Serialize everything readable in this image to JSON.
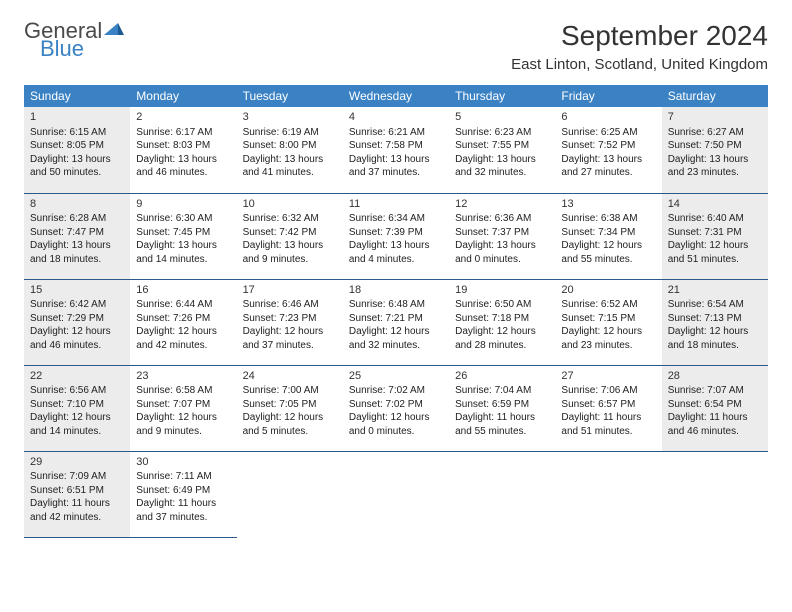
{
  "logo": {
    "general": "General",
    "blue": "Blue"
  },
  "title": "September 2024",
  "location": "East Linton, Scotland, United Kingdom",
  "colors": {
    "header_bg": "#3a82c4",
    "header_text": "#ffffff",
    "shaded_bg": "#ececec",
    "border": "#2a5a8a",
    "logo_gray": "#4a4a4a",
    "logo_blue": "#3a82c4"
  },
  "dayNames": [
    "Sunday",
    "Monday",
    "Tuesday",
    "Wednesday",
    "Thursday",
    "Friday",
    "Saturday"
  ],
  "weeks": [
    [
      {
        "n": "1",
        "shaded": true,
        "sr": "Sunrise: 6:15 AM",
        "ss": "Sunset: 8:05 PM",
        "d1": "Daylight: 13 hours",
        "d2": "and 50 minutes."
      },
      {
        "n": "2",
        "shaded": false,
        "sr": "Sunrise: 6:17 AM",
        "ss": "Sunset: 8:03 PM",
        "d1": "Daylight: 13 hours",
        "d2": "and 46 minutes."
      },
      {
        "n": "3",
        "shaded": false,
        "sr": "Sunrise: 6:19 AM",
        "ss": "Sunset: 8:00 PM",
        "d1": "Daylight: 13 hours",
        "d2": "and 41 minutes."
      },
      {
        "n": "4",
        "shaded": false,
        "sr": "Sunrise: 6:21 AM",
        "ss": "Sunset: 7:58 PM",
        "d1": "Daylight: 13 hours",
        "d2": "and 37 minutes."
      },
      {
        "n": "5",
        "shaded": false,
        "sr": "Sunrise: 6:23 AM",
        "ss": "Sunset: 7:55 PM",
        "d1": "Daylight: 13 hours",
        "d2": "and 32 minutes."
      },
      {
        "n": "6",
        "shaded": false,
        "sr": "Sunrise: 6:25 AM",
        "ss": "Sunset: 7:52 PM",
        "d1": "Daylight: 13 hours",
        "d2": "and 27 minutes."
      },
      {
        "n": "7",
        "shaded": true,
        "sr": "Sunrise: 6:27 AM",
        "ss": "Sunset: 7:50 PM",
        "d1": "Daylight: 13 hours",
        "d2": "and 23 minutes."
      }
    ],
    [
      {
        "n": "8",
        "shaded": true,
        "sr": "Sunrise: 6:28 AM",
        "ss": "Sunset: 7:47 PM",
        "d1": "Daylight: 13 hours",
        "d2": "and 18 minutes."
      },
      {
        "n": "9",
        "shaded": false,
        "sr": "Sunrise: 6:30 AM",
        "ss": "Sunset: 7:45 PM",
        "d1": "Daylight: 13 hours",
        "d2": "and 14 minutes."
      },
      {
        "n": "10",
        "shaded": false,
        "sr": "Sunrise: 6:32 AM",
        "ss": "Sunset: 7:42 PM",
        "d1": "Daylight: 13 hours",
        "d2": "and 9 minutes."
      },
      {
        "n": "11",
        "shaded": false,
        "sr": "Sunrise: 6:34 AM",
        "ss": "Sunset: 7:39 PM",
        "d1": "Daylight: 13 hours",
        "d2": "and 4 minutes."
      },
      {
        "n": "12",
        "shaded": false,
        "sr": "Sunrise: 6:36 AM",
        "ss": "Sunset: 7:37 PM",
        "d1": "Daylight: 13 hours",
        "d2": "and 0 minutes."
      },
      {
        "n": "13",
        "shaded": false,
        "sr": "Sunrise: 6:38 AM",
        "ss": "Sunset: 7:34 PM",
        "d1": "Daylight: 12 hours",
        "d2": "and 55 minutes."
      },
      {
        "n": "14",
        "shaded": true,
        "sr": "Sunrise: 6:40 AM",
        "ss": "Sunset: 7:31 PM",
        "d1": "Daylight: 12 hours",
        "d2": "and 51 minutes."
      }
    ],
    [
      {
        "n": "15",
        "shaded": true,
        "sr": "Sunrise: 6:42 AM",
        "ss": "Sunset: 7:29 PM",
        "d1": "Daylight: 12 hours",
        "d2": "and 46 minutes."
      },
      {
        "n": "16",
        "shaded": false,
        "sr": "Sunrise: 6:44 AM",
        "ss": "Sunset: 7:26 PM",
        "d1": "Daylight: 12 hours",
        "d2": "and 42 minutes."
      },
      {
        "n": "17",
        "shaded": false,
        "sr": "Sunrise: 6:46 AM",
        "ss": "Sunset: 7:23 PM",
        "d1": "Daylight: 12 hours",
        "d2": "and 37 minutes."
      },
      {
        "n": "18",
        "shaded": false,
        "sr": "Sunrise: 6:48 AM",
        "ss": "Sunset: 7:21 PM",
        "d1": "Daylight: 12 hours",
        "d2": "and 32 minutes."
      },
      {
        "n": "19",
        "shaded": false,
        "sr": "Sunrise: 6:50 AM",
        "ss": "Sunset: 7:18 PM",
        "d1": "Daylight: 12 hours",
        "d2": "and 28 minutes."
      },
      {
        "n": "20",
        "shaded": false,
        "sr": "Sunrise: 6:52 AM",
        "ss": "Sunset: 7:15 PM",
        "d1": "Daylight: 12 hours",
        "d2": "and 23 minutes."
      },
      {
        "n": "21",
        "shaded": true,
        "sr": "Sunrise: 6:54 AM",
        "ss": "Sunset: 7:13 PM",
        "d1": "Daylight: 12 hours",
        "d2": "and 18 minutes."
      }
    ],
    [
      {
        "n": "22",
        "shaded": true,
        "sr": "Sunrise: 6:56 AM",
        "ss": "Sunset: 7:10 PM",
        "d1": "Daylight: 12 hours",
        "d2": "and 14 minutes."
      },
      {
        "n": "23",
        "shaded": false,
        "sr": "Sunrise: 6:58 AM",
        "ss": "Sunset: 7:07 PM",
        "d1": "Daylight: 12 hours",
        "d2": "and 9 minutes."
      },
      {
        "n": "24",
        "shaded": false,
        "sr": "Sunrise: 7:00 AM",
        "ss": "Sunset: 7:05 PM",
        "d1": "Daylight: 12 hours",
        "d2": "and 5 minutes."
      },
      {
        "n": "25",
        "shaded": false,
        "sr": "Sunrise: 7:02 AM",
        "ss": "Sunset: 7:02 PM",
        "d1": "Daylight: 12 hours",
        "d2": "and 0 minutes."
      },
      {
        "n": "26",
        "shaded": false,
        "sr": "Sunrise: 7:04 AM",
        "ss": "Sunset: 6:59 PM",
        "d1": "Daylight: 11 hours",
        "d2": "and 55 minutes."
      },
      {
        "n": "27",
        "shaded": false,
        "sr": "Sunrise: 7:06 AM",
        "ss": "Sunset: 6:57 PM",
        "d1": "Daylight: 11 hours",
        "d2": "and 51 minutes."
      },
      {
        "n": "28",
        "shaded": true,
        "sr": "Sunrise: 7:07 AM",
        "ss": "Sunset: 6:54 PM",
        "d1": "Daylight: 11 hours",
        "d2": "and 46 minutes."
      }
    ],
    [
      {
        "n": "29",
        "shaded": true,
        "sr": "Sunrise: 7:09 AM",
        "ss": "Sunset: 6:51 PM",
        "d1": "Daylight: 11 hours",
        "d2": "and 42 minutes."
      },
      {
        "n": "30",
        "shaded": false,
        "sr": "Sunrise: 7:11 AM",
        "ss": "Sunset: 6:49 PM",
        "d1": "Daylight: 11 hours",
        "d2": "and 37 minutes."
      },
      {
        "empty": true
      },
      {
        "empty": true
      },
      {
        "empty": true
      },
      {
        "empty": true
      },
      {
        "empty": true
      }
    ]
  ]
}
